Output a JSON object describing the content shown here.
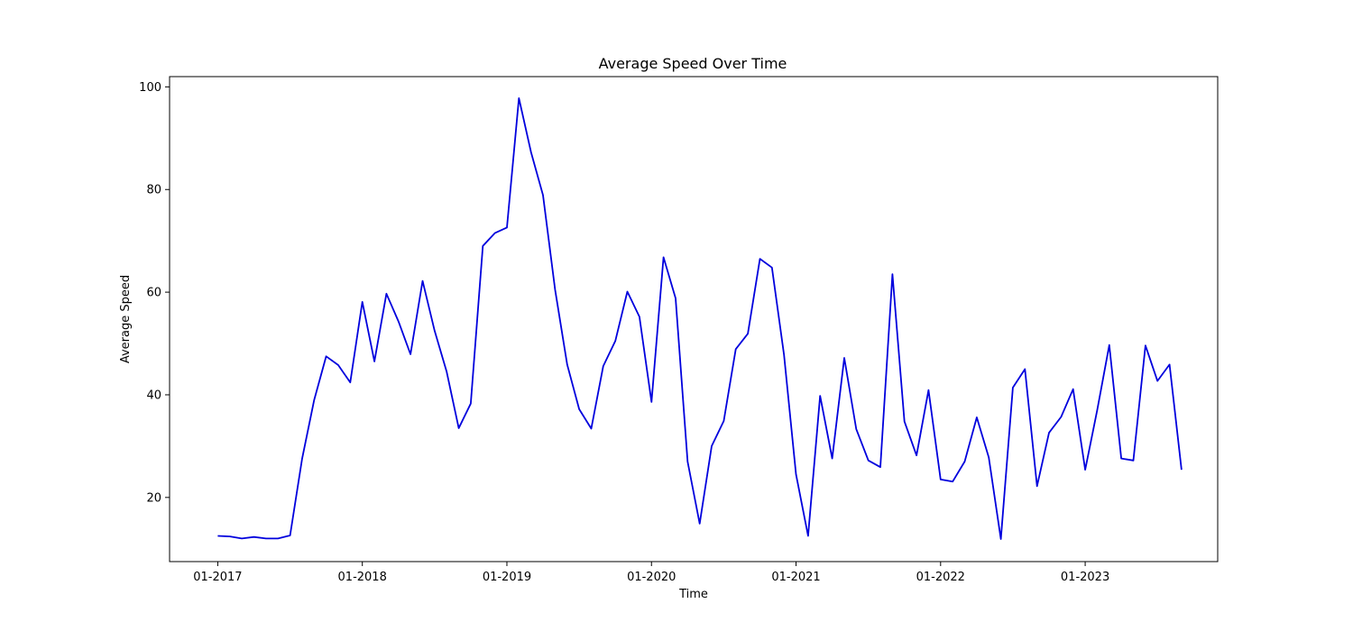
{
  "chart_data": {
    "type": "line",
    "title": "Average Speed Over Time",
    "xlabel": "Time",
    "ylabel": "Average Speed",
    "x_ticks": [
      "01-2017",
      "01-2018",
      "01-2019",
      "01-2020",
      "01-2021",
      "01-2022",
      "01-2023"
    ],
    "y_ticks": [
      20,
      40,
      60,
      80,
      100
    ],
    "xlim": [
      "2016-09",
      "2023-12"
    ],
    "ylim": [
      7.5,
      102
    ],
    "grid": false,
    "line_color": "#0000dd",
    "series": [
      {
        "x": [
          "2017-01",
          "2017-02",
          "2017-03",
          "2017-04",
          "2017-05",
          "2017-06",
          "2017-07",
          "2017-08",
          "2017-09",
          "2017-10",
          "2017-11",
          "2017-12",
          "2018-01",
          "2018-02",
          "2018-03",
          "2018-04",
          "2018-05",
          "2018-06",
          "2018-07",
          "2018-08",
          "2018-09",
          "2018-10",
          "2018-11",
          "2018-12",
          "2019-01",
          "2019-02",
          "2019-03",
          "2019-04",
          "2019-05",
          "2019-06",
          "2019-07",
          "2019-08",
          "2019-09",
          "2019-10",
          "2019-11",
          "2019-12",
          "2020-01",
          "2020-02",
          "2020-03",
          "2020-04",
          "2020-05",
          "2020-06",
          "2020-07",
          "2020-08",
          "2020-09",
          "2020-10",
          "2020-11",
          "2020-12",
          "2021-01",
          "2021-02",
          "2021-03",
          "2021-04",
          "2021-05",
          "2021-06",
          "2021-07",
          "2021-08",
          "2021-09",
          "2021-10",
          "2021-11",
          "2021-12",
          "2022-01",
          "2022-02",
          "2022-03",
          "2022-04",
          "2022-05",
          "2022-06",
          "2022-07",
          "2022-08",
          "2022-09",
          "2022-10",
          "2022-11",
          "2022-12",
          "2023-01",
          "2023-02",
          "2023-03",
          "2023-04",
          "2023-05",
          "2023-06",
          "2023-07",
          "2023-08",
          "2023-09"
        ],
        "values": [
          12.5,
          12.4,
          12.0,
          12.3,
          12.0,
          12.0,
          12.6,
          27.5,
          39.0,
          47.5,
          45.8,
          42.4,
          58.1,
          46.5,
          59.7,
          54.3,
          47.9,
          62.2,
          52.5,
          44.5,
          33.5,
          38.3,
          69.0,
          71.5,
          72.6,
          97.8,
          87.3,
          78.9,
          60.5,
          45.9,
          37.2,
          33.4,
          45.6,
          50.5,
          60.1,
          55.2,
          38.6,
          66.8,
          58.8,
          27.0,
          14.9,
          30.0,
          34.9,
          48.9,
          51.9,
          66.5,
          64.8,
          47.8,
          24.5,
          12.5,
          39.8,
          27.6,
          47.2,
          33.3,
          27.2,
          25.9,
          63.5,
          34.8,
          28.2,
          40.9,
          23.5,
          23.1,
          27.0,
          35.6,
          27.8,
          11.9,
          41.4,
          45.0,
          22.2,
          32.6,
          35.7,
          41.1,
          25.4,
          37.0,
          49.7,
          27.6,
          27.2,
          49.6,
          42.7,
          45.9,
          25.4
        ]
      }
    ]
  }
}
